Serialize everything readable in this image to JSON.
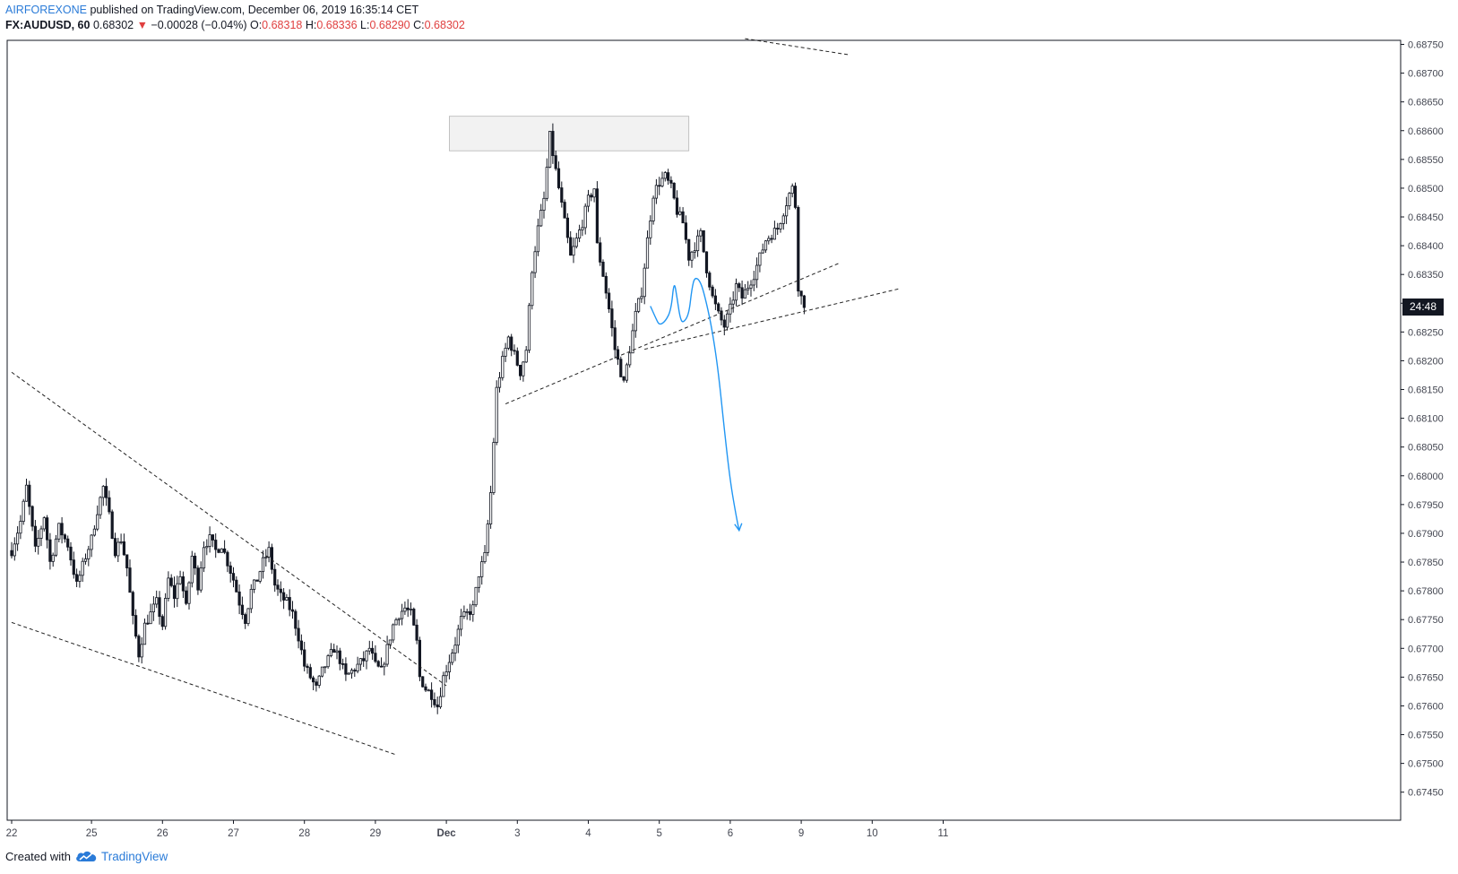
{
  "header": {
    "author": "AIRFOREXONE",
    "published_text": " published on TradingView.com, December 06, 2019 16:35:14 CET",
    "symbol": "FX:AUDUSD, 60",
    "last": " 0.68302 ",
    "change_arrow": "▼",
    "change": " −0.00028 (−0.04%) ",
    "o_label": "O:",
    "o_value": "0.68318",
    "h_label": " H:",
    "h_value": "0.68336",
    "l_label": " L:",
    "l_value": "0.68290",
    "c_label": " C:",
    "c_value": "0.68302"
  },
  "countdown": "24:48",
  "footer": {
    "created_with": "Created with",
    "brand": "TradingView"
  },
  "colors": {
    "candle": "#131722",
    "up_fill": "#ffffff",
    "axis": "#131722",
    "label": "#434651",
    "trendline": "#222222",
    "forecast": "#2196f3",
    "zone_fill": "#f2f2f2",
    "zone_stroke": "#b5b5b5"
  },
  "chart_data": {
    "type": "candlestick",
    "y_ticks": [
      "0.67450",
      "0.67500",
      "0.67550",
      "0.67600",
      "0.67650",
      "0.67700",
      "0.67750",
      "0.67800",
      "0.67850",
      "0.67900",
      "0.67950",
      "0.68000",
      "0.68050",
      "0.68100",
      "0.68150",
      "0.68200",
      "0.68250",
      "0.68300",
      "0.68350",
      "0.68400",
      "0.68450",
      "0.68500",
      "0.68550",
      "0.68600",
      "0.68650",
      "0.68700",
      "0.68750"
    ],
    "ylim": [
      0.6743,
      0.6876
    ],
    "x_labels": [
      "22",
      "25",
      "26",
      "27",
      "28",
      "29",
      "Dec",
      "3",
      "4",
      "5",
      "6",
      "9",
      "10",
      "11"
    ],
    "x_bold": [
      "Dec"
    ],
    "anchors": [
      {
        "label": "22",
        "bar": 0
      },
      {
        "label": "25",
        "bar": 27
      },
      {
        "label": "26",
        "bar": 51
      },
      {
        "label": "27",
        "bar": 75
      },
      {
        "label": "28",
        "bar": 99
      },
      {
        "label": "29",
        "bar": 123
      },
      {
        "label": "Dec",
        "bar": 147
      },
      {
        "label": "3",
        "bar": 171
      },
      {
        "label": "4",
        "bar": 195
      },
      {
        "label": "5",
        "bar": 219
      },
      {
        "label": "6",
        "bar": 243
      },
      {
        "label": "9",
        "bar": 267
      },
      {
        "label": "10",
        "bar": 291
      },
      {
        "label": "11",
        "bar": 315
      }
    ],
    "path": [
      [
        0,
        0.6787
      ],
      [
        3,
        0.6792
      ],
      [
        5,
        0.6798
      ],
      [
        8,
        0.6787
      ],
      [
        11,
        0.6793
      ],
      [
        13,
        0.6785
      ],
      [
        16,
        0.6791
      ],
      [
        19,
        0.6788
      ],
      [
        22,
        0.6781
      ],
      [
        25,
        0.6786
      ],
      [
        27,
        0.6789
      ],
      [
        29,
        0.6794
      ],
      [
        31,
        0.6798
      ],
      [
        33,
        0.6793
      ],
      [
        35,
        0.6787
      ],
      [
        37,
        0.6789
      ],
      [
        39,
        0.6784
      ],
      [
        41,
        0.6775
      ],
      [
        43,
        0.6769
      ],
      [
        45,
        0.6774
      ],
      [
        47,
        0.6776
      ],
      [
        49,
        0.6778
      ],
      [
        51,
        0.6774
      ],
      [
        53,
        0.6782
      ],
      [
        55,
        0.6779
      ],
      [
        57,
        0.6783
      ],
      [
        59,
        0.6777
      ],
      [
        61,
        0.6786
      ],
      [
        63,
        0.6781
      ],
      [
        65,
        0.6788
      ],
      [
        67,
        0.6789
      ],
      [
        69,
        0.6787
      ],
      [
        71,
        0.6788
      ],
      [
        73,
        0.6785
      ],
      [
        75,
        0.6782
      ],
      [
        77,
        0.6778
      ],
      [
        79,
        0.6775
      ],
      [
        81,
        0.678
      ],
      [
        83,
        0.6782
      ],
      [
        85,
        0.6785
      ],
      [
        87,
        0.6787
      ],
      [
        89,
        0.6781
      ],
      [
        91,
        0.6779
      ],
      [
        93,
        0.6778
      ],
      [
        95,
        0.6776
      ],
      [
        97,
        0.6772
      ],
      [
        99,
        0.6767
      ],
      [
        101,
        0.6765
      ],
      [
        103,
        0.6763
      ],
      [
        105,
        0.6766
      ],
      [
        107,
        0.6768
      ],
      [
        109,
        0.677
      ],
      [
        111,
        0.6768
      ],
      [
        113,
        0.6765
      ],
      [
        115,
        0.6766
      ],
      [
        117,
        0.6767
      ],
      [
        119,
        0.6768
      ],
      [
        121,
        0.677
      ],
      [
        123,
        0.6767
      ],
      [
        125,
        0.6766
      ],
      [
        127,
        0.677
      ],
      [
        129,
        0.6774
      ],
      [
        131,
        0.6776
      ],
      [
        133,
        0.6777
      ],
      [
        135,
        0.6776
      ],
      [
        137,
        0.6771
      ],
      [
        138,
        0.6765
      ],
      [
        140,
        0.6763
      ],
      [
        142,
        0.6762
      ],
      [
        144,
        0.676
      ],
      [
        146,
        0.6765
      ],
      [
        148,
        0.6768
      ],
      [
        150,
        0.6771
      ],
      [
        152,
        0.6775
      ],
      [
        154,
        0.6776
      ],
      [
        156,
        0.6777
      ],
      [
        158,
        0.6783
      ],
      [
        160,
        0.6786
      ],
      [
        162,
        0.6797
      ],
      [
        163,
        0.6806
      ],
      [
        164,
        0.6815
      ],
      [
        166,
        0.682
      ],
      [
        168,
        0.6824
      ],
      [
        170,
        0.6821
      ],
      [
        172,
        0.6818
      ],
      [
        174,
        0.6822
      ],
      [
        176,
        0.6836
      ],
      [
        178,
        0.6843
      ],
      [
        180,
        0.6848
      ],
      [
        182,
        0.6859
      ],
      [
        183,
        0.6856
      ],
      [
        185,
        0.685
      ],
      [
        187,
        0.6844
      ],
      [
        189,
        0.6838
      ],
      [
        191,
        0.6841
      ],
      [
        193,
        0.6844
      ],
      [
        195,
        0.6848
      ],
      [
        197,
        0.685
      ],
      [
        198,
        0.684
      ],
      [
        200,
        0.6835
      ],
      [
        202,
        0.6829
      ],
      [
        204,
        0.6822
      ],
      [
        206,
        0.6818
      ],
      [
        207,
        0.6816
      ],
      [
        209,
        0.6822
      ],
      [
        211,
        0.6828
      ],
      [
        213,
        0.6832
      ],
      [
        215,
        0.6841
      ],
      [
        217,
        0.6849
      ],
      [
        219,
        0.6851
      ],
      [
        221,
        0.6852
      ],
      [
        223,
        0.685
      ],
      [
        225,
        0.6846
      ],
      [
        227,
        0.6844
      ],
      [
        229,
        0.6838
      ],
      [
        231,
        0.684
      ],
      [
        233,
        0.6842
      ],
      [
        235,
        0.6836
      ],
      [
        237,
        0.6831
      ],
      [
        239,
        0.6828
      ],
      [
        241,
        0.6826
      ],
      [
        243,
        0.6829
      ],
      [
        245,
        0.6833
      ],
      [
        247,
        0.6831
      ],
      [
        249,
        0.6833
      ],
      [
        251,
        0.6835
      ],
      [
        253,
        0.6838
      ],
      [
        255,
        0.6841
      ],
      [
        257,
        0.6842
      ],
      [
        259,
        0.6843
      ],
      [
        261,
        0.6846
      ],
      [
        263,
        0.6849
      ],
      [
        264,
        0.685
      ],
      [
        265,
        0.6847
      ],
      [
        266,
        0.6833
      ],
      [
        267,
        0.6831
      ],
      [
        268,
        0.683
      ]
    ],
    "trendlines": [
      {
        "from": [
          0,
          0.6818
        ],
        "to": [
          147,
          0.67635
        ]
      },
      {
        "from": [
          0,
          0.67745
        ],
        "to": [
          130,
          0.67515
        ]
      },
      {
        "from": [
          167,
          0.68125
        ],
        "to": [
          280,
          0.6837
        ]
      },
      {
        "from": [
          214,
          0.6822
        ],
        "to": [
          300,
          0.68325
        ]
      },
      {
        "from": [
          248,
          0.6876
        ],
        "to": [
          283,
          0.68732
        ]
      }
    ],
    "zone": {
      "x_from": 148,
      "x_to": 229,
      "y_from": 0.68565,
      "y_to": 0.68625
    },
    "forecast": [
      [
        216,
        0.68295
      ],
      [
        218,
        0.68272
      ],
      [
        219,
        0.68262
      ],
      [
        221,
        0.68268
      ],
      [
        223,
        0.68288
      ],
      [
        224,
        0.6834
      ],
      [
        225,
        0.6831
      ],
      [
        226,
        0.68275
      ],
      [
        227,
        0.68265
      ],
      [
        229,
        0.6828
      ],
      [
        230,
        0.68325
      ],
      [
        231,
        0.68346
      ],
      [
        233,
        0.68338
      ],
      [
        235,
        0.683
      ],
      [
        237,
        0.6825
      ],
      [
        239,
        0.6818
      ],
      [
        241,
        0.6808
      ],
      [
        243,
        0.6799
      ],
      [
        245,
        0.6793
      ],
      [
        246,
        0.67905
      ]
    ],
    "forecast_arrowhead": [
      246,
      0.67905
    ],
    "current_price": 0.68302
  }
}
